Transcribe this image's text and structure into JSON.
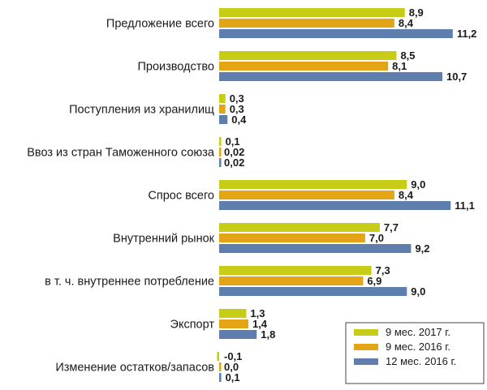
{
  "chart_data": {
    "type": "bar",
    "orientation": "horizontal",
    "categories": [
      "Предложение всего",
      "Производство",
      "Поступления из хранилищ",
      "Ввоз из стран Таможенного союза",
      "Спрос всего",
      "Внутренний рынок",
      "в т. ч. внутреннее потребление",
      "Экспорт",
      "Изменение остатков/запасов"
    ],
    "series": [
      {
        "name": "9 мес. 2017 г.",
        "color": "#c7cd16",
        "values": [
          8.9,
          8.5,
          0.3,
          0.1,
          9.0,
          7.7,
          7.3,
          1.3,
          -0.1
        ],
        "labels": [
          "8,9",
          "8,5",
          "0,3",
          "0,1",
          "9,0",
          "7,7",
          "7,3",
          "1,3",
          "-0,1"
        ]
      },
      {
        "name": "9 мес. 2016 г.",
        "color": "#e3a515",
        "values": [
          8.4,
          8.1,
          0.3,
          0.02,
          8.4,
          7.0,
          6.9,
          1.4,
          0.0
        ],
        "labels": [
          "8,4",
          "8,1",
          "0,3",
          "0,02",
          "8,4",
          "7,0",
          "6,9",
          "1,4",
          "0,0"
        ]
      },
      {
        "name": "12 мес. 2016 г.",
        "color": "#5e7fae",
        "values": [
          11.2,
          10.7,
          0.4,
          0.02,
          11.1,
          9.2,
          9.0,
          1.8,
          0.1
        ],
        "labels": [
          "11,2",
          "10,7",
          "0,4",
          "0,02",
          "11,1",
          "9,2",
          "9,0",
          "1,8",
          "0,1"
        ]
      }
    ],
    "title": "",
    "xlabel": "",
    "ylabel": "",
    "xlim": [
      0,
      12
    ],
    "grid": false,
    "legend_position": "bottom-right"
  }
}
